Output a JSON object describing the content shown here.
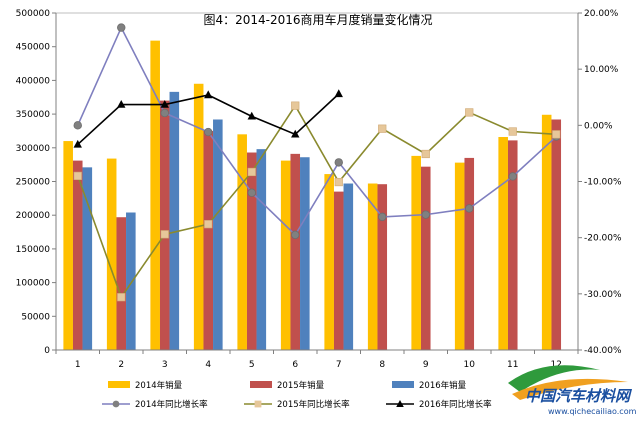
{
  "chart_data": {
    "type": "bar+line",
    "title": "图4：2014-2016商用车月度销量变化情况",
    "categories": [
      "1",
      "2",
      "3",
      "4",
      "5",
      "6",
      "7",
      "8",
      "9",
      "10",
      "11",
      "12"
    ],
    "left_axis": {
      "min": 0,
      "max": 500000,
      "step": 50000,
      "tick_labels": [
        "0",
        "50000",
        "100000",
        "150000",
        "200000",
        "250000",
        "300000",
        "350000",
        "400000",
        "450000",
        "500000"
      ]
    },
    "right_axis": {
      "min": -40,
      "max": 20,
      "step": 10,
      "tick_labels": [
        "-40.00%",
        "-30.00%",
        "-20.00%",
        "-10.00%",
        "0.00%",
        "10.00%",
        "20.00%"
      ]
    },
    "bar_series": [
      {
        "name": "2014年销量",
        "color": "#FFC000",
        "values": [
          310000,
          284000,
          459000,
          395000,
          320000,
          281000,
          261000,
          247000,
          288000,
          278000,
          316000,
          349000
        ]
      },
      {
        "name": "2015年销量",
        "color": "#C0504D",
        "values": [
          281000,
          197000,
          370000,
          325000,
          293000,
          291000,
          235000,
          246000,
          272000,
          285000,
          311000,
          342000
        ]
      },
      {
        "name": "2016年销量",
        "color": "#4F81BD",
        "values": [
          271000,
          204000,
          383000,
          342000,
          298000,
          286000,
          247000,
          null,
          null,
          null,
          null,
          null
        ]
      }
    ],
    "line_series": [
      {
        "name": "2014年同比增长率",
        "color": "#7F7FBF",
        "marker": "circle",
        "values": [
          0.0,
          17.4,
          2.2,
          -1.2,
          -12.0,
          -19.5,
          -6.6,
          -16.3,
          -15.9,
          -14.8,
          -9.1,
          -2.0
        ]
      },
      {
        "name": "2015年同比增长率",
        "color": "#8A8A2E",
        "marker": "square",
        "values": [
          -9.0,
          -30.6,
          -19.4,
          -17.6,
          -8.3,
          3.5,
          -10.1,
          -0.6,
          -5.1,
          2.3,
          -1.1,
          -1.6
        ]
      },
      {
        "name": "2016年同比增长率",
        "color": "#000000",
        "marker": "triangle",
        "values": [
          -3.4,
          3.7,
          3.7,
          5.4,
          1.6,
          -1.6,
          5.6,
          null,
          null,
          null,
          null,
          null
        ]
      }
    ]
  },
  "watermark": {
    "name": "中国汽车材料网",
    "url": "www.qichecailiao.com"
  }
}
